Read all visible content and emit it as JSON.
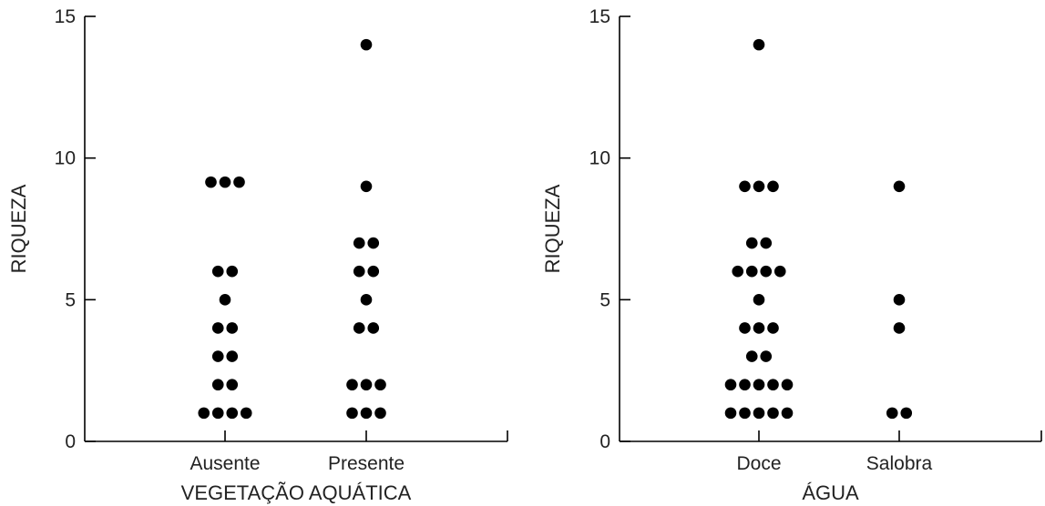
{
  "chart_data": [
    {
      "type": "scatter",
      "subtype": "dot-strip",
      "title": "",
      "xlabel": "VEGETAÇÃO AQUÁTICA",
      "ylabel": "RIQUEZA",
      "ylim": [
        0,
        15
      ],
      "yticks": [
        0,
        5,
        10,
        15
      ],
      "grid": false,
      "categories": [
        "Ausente",
        "Presente"
      ],
      "series": [
        {
          "category": "Ausente",
          "points": [
            {
              "y": 9.15,
              "count": 3
            },
            {
              "y": 6,
              "count": 2
            },
            {
              "y": 5,
              "count": 1
            },
            {
              "y": 4,
              "count": 2
            },
            {
              "y": 3,
              "count": 2
            },
            {
              "y": 2,
              "count": 2
            },
            {
              "y": 1,
              "count": 4
            }
          ]
        },
        {
          "category": "Presente",
          "points": [
            {
              "y": 14,
              "count": 1
            },
            {
              "y": 9,
              "count": 1
            },
            {
              "y": 7,
              "count": 2
            },
            {
              "y": 6,
              "count": 2
            },
            {
              "y": 5,
              "count": 1
            },
            {
              "y": 4,
              "count": 2
            },
            {
              "y": 2,
              "count": 3
            },
            {
              "y": 1,
              "count": 3
            }
          ]
        }
      ]
    },
    {
      "type": "scatter",
      "subtype": "dot-strip",
      "title": "",
      "xlabel": "ÁGUA",
      "ylabel": "RIQUEZA",
      "ylim": [
        0,
        15
      ],
      "yticks": [
        0,
        5,
        10,
        15
      ],
      "grid": false,
      "categories": [
        "Doce",
        "Salobra"
      ],
      "series": [
        {
          "category": "Doce",
          "points": [
            {
              "y": 14,
              "count": 1
            },
            {
              "y": 9,
              "count": 3
            },
            {
              "y": 7,
              "count": 2
            },
            {
              "y": 6,
              "count": 4
            },
            {
              "y": 5,
              "count": 1
            },
            {
              "y": 4,
              "count": 3
            },
            {
              "y": 3,
              "count": 2
            },
            {
              "y": 2,
              "count": 5
            },
            {
              "y": 1,
              "count": 5
            }
          ]
        },
        {
          "category": "Salobra",
          "points": [
            {
              "y": 9,
              "count": 1
            },
            {
              "y": 5,
              "count": 1
            },
            {
              "y": 4,
              "count": 1
            },
            {
              "y": 1,
              "count": 2
            }
          ]
        }
      ]
    }
  ]
}
